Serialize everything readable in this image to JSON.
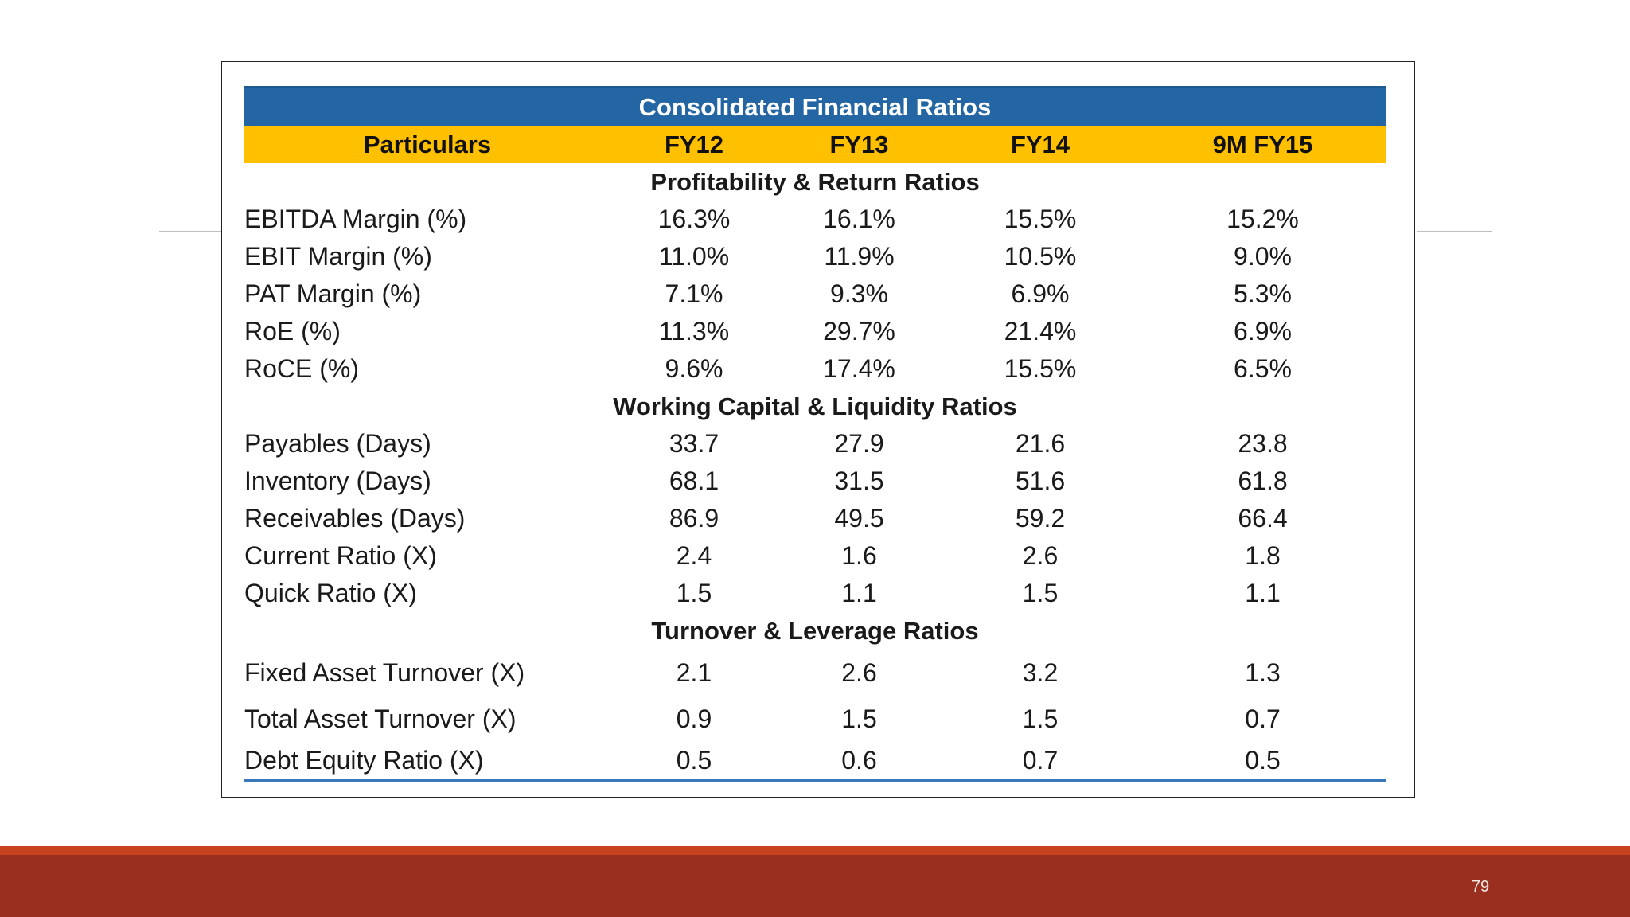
{
  "table": {
    "title": "Consolidated Financial Ratios",
    "headers": [
      "Particulars",
      "FY12",
      "FY13",
      "FY14",
      "9M FY15"
    ],
    "sections": [
      {
        "name": "Profitability & Return Ratios",
        "rows": [
          {
            "label": "EBITDA Margin (%)",
            "values": [
              "16.3%",
              "16.1%",
              "15.5%",
              "15.2%"
            ]
          },
          {
            "label": "EBIT Margin (%)",
            "values": [
              "11.0%",
              "11.9%",
              "10.5%",
              "9.0%"
            ]
          },
          {
            "label": "PAT Margin (%)",
            "values": [
              "7.1%",
              "9.3%",
              "6.9%",
              "5.3%"
            ]
          },
          {
            "label": "RoE (%)",
            "values": [
              "11.3%",
              "29.7%",
              "21.4%",
              "6.9%"
            ]
          },
          {
            "label": "RoCE (%)",
            "values": [
              "9.6%",
              "17.4%",
              "15.5%",
              "6.5%"
            ]
          }
        ]
      },
      {
        "name": "Working Capital & Liquidity Ratios",
        "rows": [
          {
            "label": "Payables (Days)",
            "values": [
              "33.7",
              "27.9",
              "21.6",
              "23.8"
            ]
          },
          {
            "label": "Inventory (Days)",
            "values": [
              "68.1",
              "31.5",
              "51.6",
              "61.8"
            ]
          },
          {
            "label": "Receivables (Days)",
            "values": [
              "86.9",
              "49.5",
              "59.2",
              "66.4"
            ]
          },
          {
            "label": "Current Ratio (X)",
            "values": [
              "2.4",
              "1.6",
              "2.6",
              "1.8"
            ]
          },
          {
            "label": "Quick Ratio (X)",
            "values": [
              "1.5",
              "1.1",
              "1.5",
              "1.1"
            ]
          }
        ]
      },
      {
        "name": "Turnover & Leverage Ratios",
        "rows": [
          {
            "label": "Fixed Asset Turnover (X)",
            "values": [
              "2.1",
              "2.6",
              "3.2",
              "1.3"
            ]
          },
          {
            "label": "Total Asset Turnover (X)",
            "values": [
              "0.9",
              "1.5",
              "1.5",
              "0.7"
            ]
          },
          {
            "label": "Debt Equity Ratio (X)",
            "values": [
              "0.5",
              "0.6",
              "0.7",
              "0.5"
            ]
          }
        ]
      }
    ]
  },
  "footer": {
    "page_number": "79"
  },
  "colors": {
    "title_bar": "#2466a4",
    "header_bar": "#ffc000",
    "footer_band": "#9a2e1f",
    "footer_accent": "#c8431f"
  }
}
